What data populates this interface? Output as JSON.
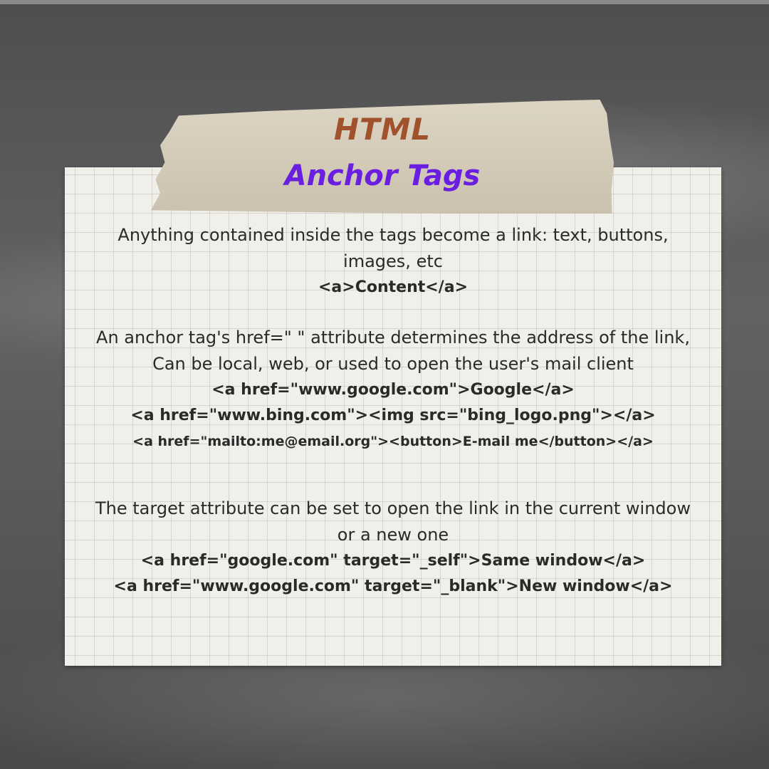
{
  "header": {
    "title": "HTML",
    "subtitle": "Anchor Tags"
  },
  "sections": [
    {
      "text": "Anything contained inside the tags become a link: text, buttons, images, etc",
      "code": [
        "<a>Content</a>"
      ]
    },
    {
      "text": "An anchor tag's href=\" \" attribute determines the address of the link, Can be local, web, or used to open the user's mail client",
      "code": [
        "<a href=\"www.google.com\">Google</a>",
        "<a href=\"www.bing.com\"><img src=\"bing_logo.png\"></a>",
        "<a href=\"mailto:me@email.org\"><button>E-mail me</button></a>"
      ]
    },
    {
      "text": "The target attribute can be set to open the link in the current window or a new one",
      "code": [
        "<a href=\"google.com\" target=\"_self\">Same window</a>",
        "<a href=\"www.google.com\" target=\"_blank\">New window</a>"
      ]
    }
  ],
  "colors": {
    "title": "#a0522d",
    "subtitle": "#6a1fe0",
    "text": "#2a2a2a",
    "paper": "#f1efe9",
    "tape": "#d7cdb9",
    "background": "#5a5a5a"
  }
}
